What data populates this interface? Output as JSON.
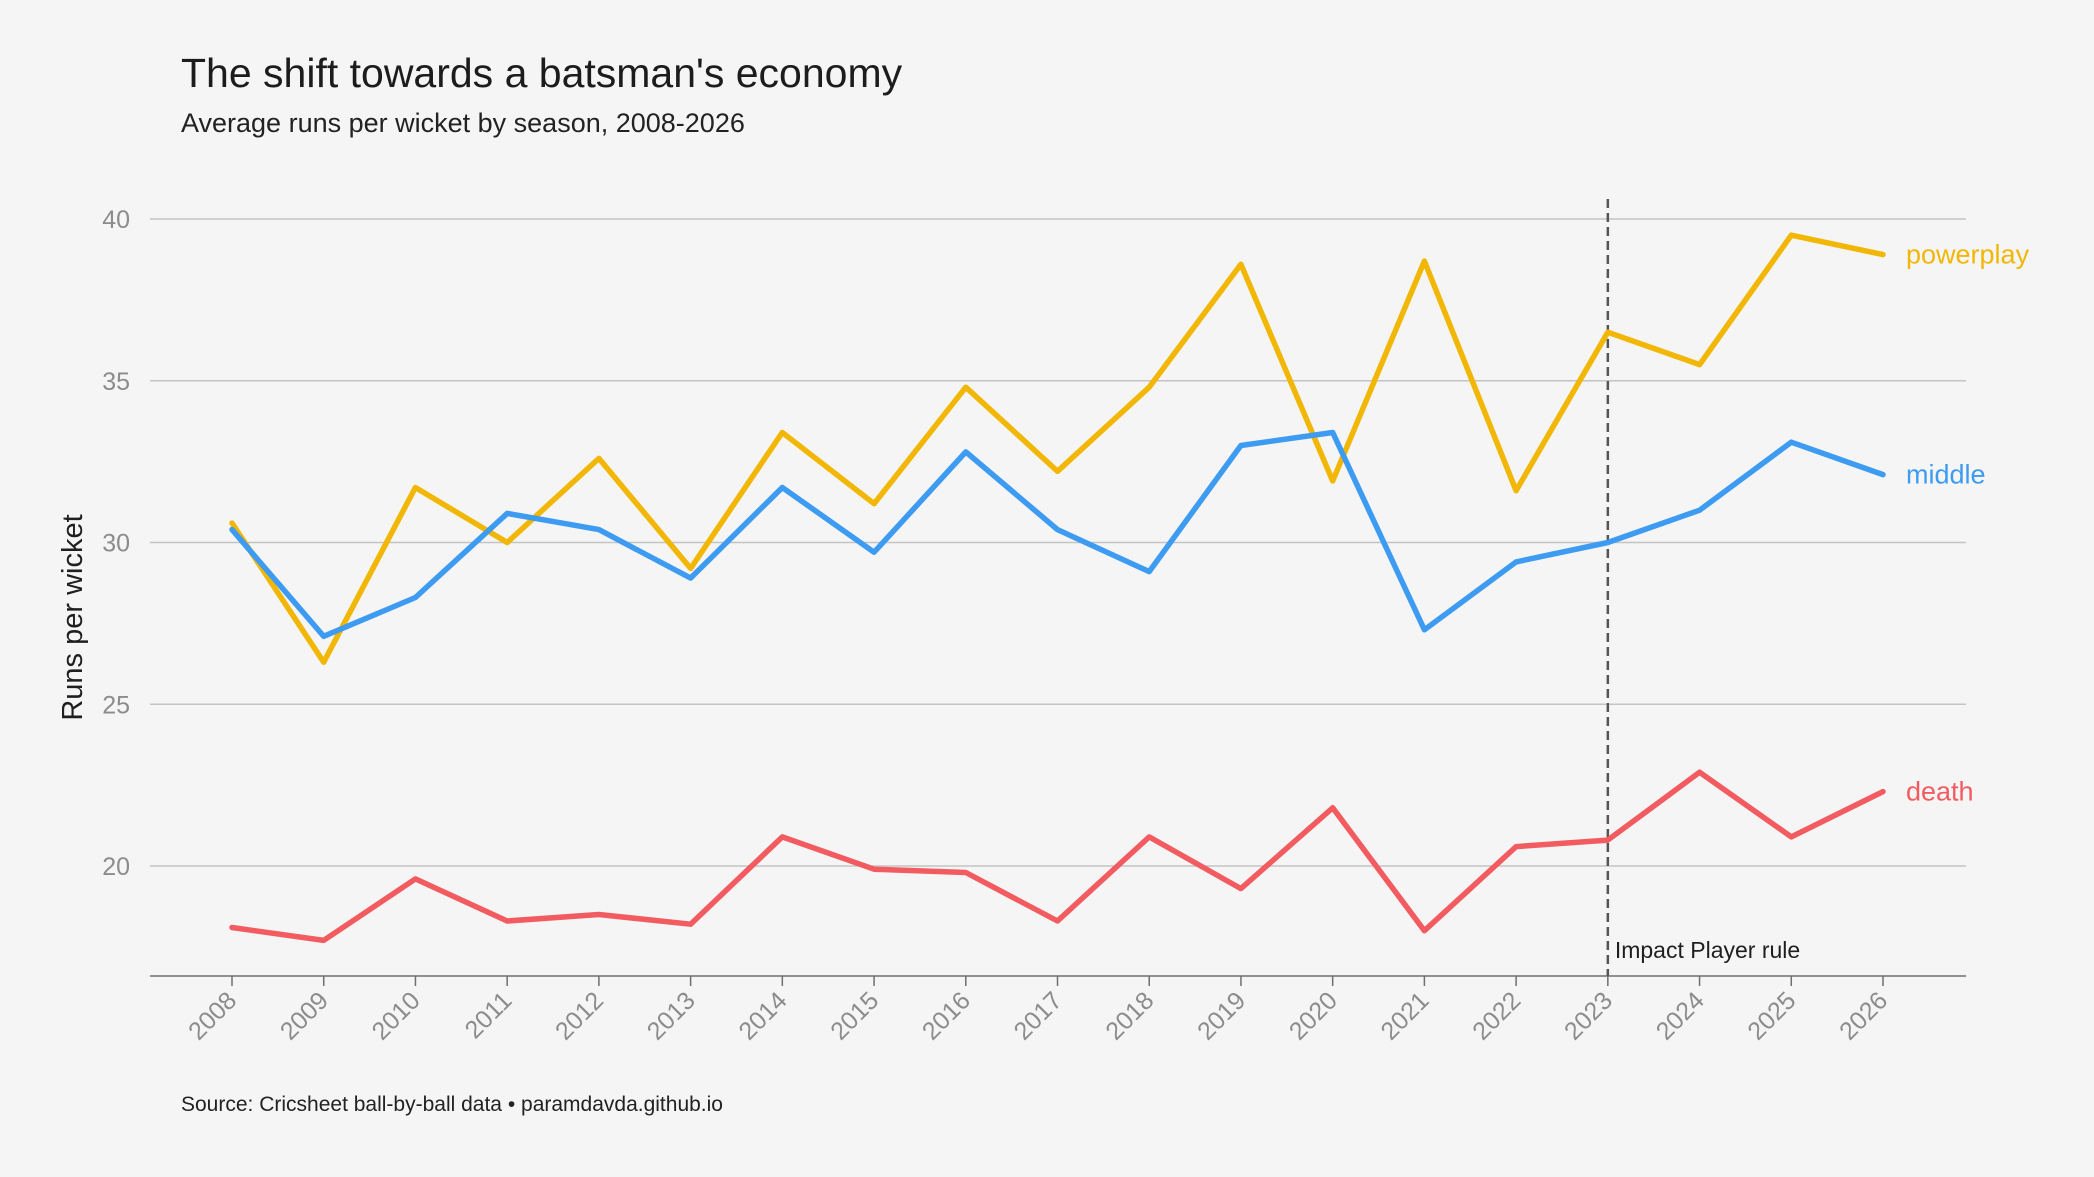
{
  "header": {
    "title": "The shift towards a batsman's economy",
    "subtitle": "Average runs per wicket by season, 2008-2026"
  },
  "footer": {
    "source": "Source: Cricsheet ball-by-ball data  •  paramdavda.github.io"
  },
  "chart_data": {
    "type": "line",
    "title": "The shift towards a batsman's economy",
    "subtitle": "Average runs per wicket by season, 2008-2026",
    "xlabel": "",
    "ylabel": "Runs per wicket",
    "ylim": [
      16.6,
      40.6
    ],
    "yticks": [
      20,
      25,
      30,
      35,
      40
    ],
    "grid": "horizontal",
    "legend": "direct labels at line ends (right)",
    "categories": [
      "2008",
      "2009",
      "2010",
      "2011",
      "2012",
      "2013",
      "2014",
      "2015",
      "2016",
      "2017",
      "2018",
      "2019",
      "2020",
      "2021",
      "2022",
      "2023",
      "2024",
      "2025",
      "2026"
    ],
    "series": [
      {
        "name": "powerplay",
        "color": "#f2b705",
        "values": [
          30.6,
          26.3,
          31.7,
          30.0,
          32.6,
          29.2,
          33.4,
          31.2,
          34.8,
          32.2,
          34.8,
          38.6,
          31.9,
          38.7,
          31.6,
          36.5,
          35.5,
          39.5,
          38.9
        ]
      },
      {
        "name": "middle",
        "color": "#3d9bf2",
        "values": [
          30.4,
          27.1,
          28.3,
          30.9,
          30.4,
          28.9,
          31.7,
          29.7,
          32.8,
          30.4,
          29.1,
          33.0,
          33.4,
          27.3,
          29.4,
          30.0,
          31.0,
          33.1,
          32.1
        ]
      },
      {
        "name": "death",
        "color": "#f25c60",
        "values": [
          18.1,
          17.7,
          19.6,
          18.3,
          18.5,
          18.2,
          20.9,
          19.9,
          19.8,
          18.3,
          20.9,
          19.3,
          21.8,
          18.0,
          20.6,
          20.8,
          22.9,
          20.9,
          22.3
        ]
      }
    ],
    "annotations": [
      {
        "type": "vline",
        "x": "2023",
        "style": "dashed",
        "color": "#555555",
        "label": "Impact Player rule"
      }
    ]
  }
}
